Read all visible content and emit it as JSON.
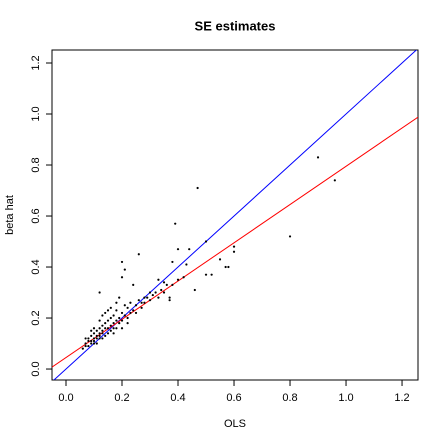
{
  "chart_data": {
    "type": "scatter",
    "title": "SE estimates",
    "x_label": "OLS",
    "y_label": "beta hat",
    "xlim": [
      -0.05,
      1.257
    ],
    "ylim": [
      -0.043,
      1.251
    ],
    "xticks": [
      {
        "value": 0,
        "label": "0.0"
      },
      0.2,
      0.4,
      0.6,
      0.8,
      {
        "value": 1,
        "label": "1.0"
      },
      1.2
    ],
    "yticks": [
      {
        "value": 0,
        "label": "0.0"
      },
      0.2,
      0.4,
      0.6,
      0.8,
      {
        "value": 1,
        "label": "1.0"
      },
      1.2
    ],
    "color": "#000000",
    "lines": [
      {
        "intercept": 0,
        "slope": 1,
        "color": "#0000ff"
      },
      {
        "intercept": 0.045,
        "slope": 0.75,
        "color": "#ff0000"
      }
    ],
    "x": [
      0.47,
      0.9,
      0.96,
      0.8,
      0.6,
      0.6,
      0.5,
      0.55,
      0.57,
      0.58,
      0.39,
      0.4,
      0.44,
      0.38,
      0.26,
      0.2,
      0.21,
      0.2,
      0.24,
      0.12,
      0.35,
      0.33,
      0.46,
      0.5,
      0.52,
      0.43,
      0.37,
      0.37,
      0.3,
      0.28,
      0.27,
      0.07,
      0.07,
      0.08,
      0.08,
      0.08,
      0.09,
      0.09,
      0.09,
      0.1,
      0.1,
      0.1,
      0.1,
      0.11,
      0.11,
      0.11,
      0.11,
      0.12,
      0.12,
      0.12,
      0.12,
      0.13,
      0.13,
      0.13,
      0.13,
      0.14,
      0.14,
      0.14,
      0.15,
      0.15,
      0.15,
      0.16,
      0.16,
      0.16,
      0.17,
      0.17,
      0.17,
      0.18,
      0.18,
      0.18,
      0.19,
      0.19,
      0.2,
      0.2,
      0.21,
      0.21,
      0.22,
      0.22,
      0.23,
      0.23,
      0.24,
      0.25,
      0.25,
      0.26,
      0.27,
      0.28,
      0.29,
      0.3,
      0.31,
      0.32,
      0.33,
      0.34,
      0.35,
      0.36,
      0.38,
      0.4,
      0.42,
      0.14,
      0.16,
      0.18,
      0.19,
      0.1,
      0.12,
      0.09,
      0.13,
      0.15,
      0.17,
      0.2,
      0.22,
      0.06,
      0.07
    ],
    "y": [
      0.71,
      0.83,
      0.74,
      0.52,
      0.48,
      0.46,
      0.5,
      0.43,
      0.4,
      0.4,
      0.57,
      0.47,
      0.47,
      0.42,
      0.45,
      0.42,
      0.39,
      0.36,
      0.33,
      0.3,
      0.34,
      0.35,
      0.31,
      0.37,
      0.37,
      0.41,
      0.27,
      0.28,
      0.3,
      0.28,
      0.26,
      0.09,
      0.1,
      0.11,
      0.09,
      0.12,
      0.1,
      0.13,
      0.11,
      0.12,
      0.1,
      0.14,
      0.11,
      0.13,
      0.12,
      0.15,
      0.1,
      0.14,
      0.12,
      0.16,
      0.13,
      0.15,
      0.12,
      0.17,
      0.14,
      0.16,
      0.13,
      0.18,
      0.16,
      0.14,
      0.19,
      0.17,
      0.15,
      0.2,
      0.18,
      0.16,
      0.21,
      0.19,
      0.16,
      0.23,
      0.2,
      0.18,
      0.22,
      0.19,
      0.21,
      0.25,
      0.2,
      0.24,
      0.22,
      0.26,
      0.23,
      0.25,
      0.22,
      0.27,
      0.24,
      0.26,
      0.28,
      0.27,
      0.29,
      0.3,
      0.28,
      0.31,
      0.3,
      0.33,
      0.33,
      0.35,
      0.36,
      0.22,
      0.24,
      0.26,
      0.28,
      0.16,
      0.19,
      0.15,
      0.21,
      0.23,
      0.14,
      0.16,
      0.18,
      0.08,
      0.12
    ]
  }
}
